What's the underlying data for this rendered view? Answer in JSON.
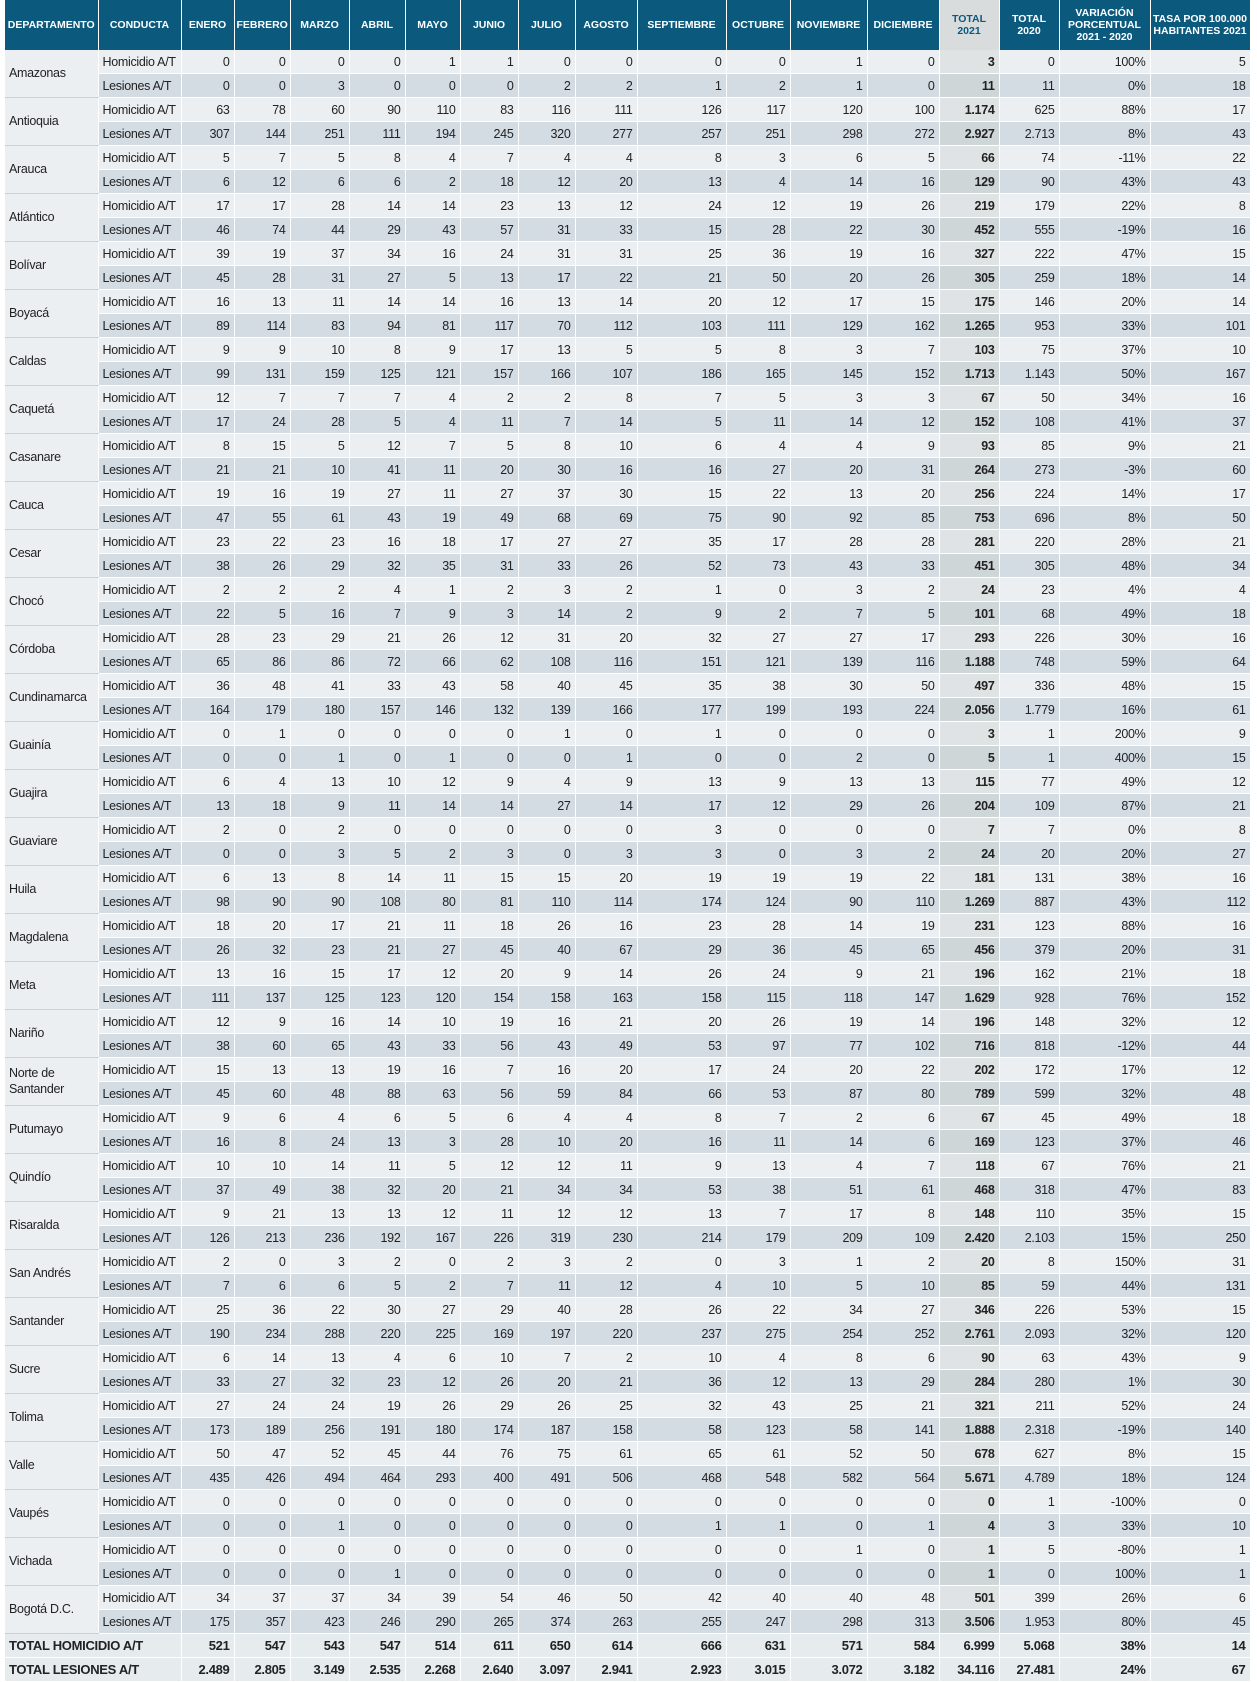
{
  "headers": [
    "DEPARTAMENTO",
    "CONDUCTA",
    "ENERO",
    "FEBRERO",
    "MARZO",
    "ABRIL",
    "MAYO",
    "JUNIO",
    "JULIO",
    "AGOSTO",
    "SEPTIEMBRE",
    "OCTUBRE",
    "NOVIEMBRE",
    "DICIEMBRE",
    "TOTAL 2021",
    "TOTAL 2020",
    "VARIACIÓN PORCENTUAL 2021 - 2020",
    "TASA POR 100.000 HABITANTES 2021"
  ],
  "conducts": {
    "h": "Homicidio A/T",
    "l": "Lesiones A/T"
  },
  "rows": [
    {
      "dept": "Amazonas",
      "h": [
        "0",
        "0",
        "0",
        "0",
        "1",
        "1",
        "0",
        "0",
        "0",
        "0",
        "1",
        "0",
        "3",
        "0",
        "100%",
        "5"
      ],
      "l": [
        "0",
        "0",
        "3",
        "0",
        "0",
        "0",
        "2",
        "2",
        "1",
        "2",
        "1",
        "0",
        "11",
        "11",
        "0%",
        "18"
      ]
    },
    {
      "dept": "Antioquia",
      "h": [
        "63",
        "78",
        "60",
        "90",
        "110",
        "83",
        "116",
        "111",
        "126",
        "117",
        "120",
        "100",
        "1.174",
        "625",
        "88%",
        "17"
      ],
      "l": [
        "307",
        "144",
        "251",
        "111",
        "194",
        "245",
        "320",
        "277",
        "257",
        "251",
        "298",
        "272",
        "2.927",
        "2.713",
        "8%",
        "43"
      ]
    },
    {
      "dept": "Arauca",
      "h": [
        "5",
        "7",
        "5",
        "8",
        "4",
        "7",
        "4",
        "4",
        "8",
        "3",
        "6",
        "5",
        "66",
        "74",
        "-11%",
        "22"
      ],
      "l": [
        "6",
        "12",
        "6",
        "6",
        "2",
        "18",
        "12",
        "20",
        "13",
        "4",
        "14",
        "16",
        "129",
        "90",
        "43%",
        "43"
      ]
    },
    {
      "dept": "Atlántico",
      "h": [
        "17",
        "17",
        "28",
        "14",
        "14",
        "23",
        "13",
        "12",
        "24",
        "12",
        "19",
        "26",
        "219",
        "179",
        "22%",
        "8"
      ],
      "l": [
        "46",
        "74",
        "44",
        "29",
        "43",
        "57",
        "31",
        "33",
        "15",
        "28",
        "22",
        "30",
        "452",
        "555",
        "-19%",
        "16"
      ]
    },
    {
      "dept": "Bolívar",
      "h": [
        "39",
        "19",
        "37",
        "34",
        "16",
        "24",
        "31",
        "31",
        "25",
        "36",
        "19",
        "16",
        "327",
        "222",
        "47%",
        "15"
      ],
      "l": [
        "45",
        "28",
        "31",
        "27",
        "5",
        "13",
        "17",
        "22",
        "21",
        "50",
        "20",
        "26",
        "305",
        "259",
        "18%",
        "14"
      ]
    },
    {
      "dept": "Boyacá",
      "h": [
        "16",
        "13",
        "11",
        "14",
        "14",
        "16",
        "13",
        "14",
        "20",
        "12",
        "17",
        "15",
        "175",
        "146",
        "20%",
        "14"
      ],
      "l": [
        "89",
        "114",
        "83",
        "94",
        "81",
        "117",
        "70",
        "112",
        "103",
        "111",
        "129",
        "162",
        "1.265",
        "953",
        "33%",
        "101"
      ]
    },
    {
      "dept": "Caldas",
      "h": [
        "9",
        "9",
        "10",
        "8",
        "9",
        "17",
        "13",
        "5",
        "5",
        "8",
        "3",
        "7",
        "103",
        "75",
        "37%",
        "10"
      ],
      "l": [
        "99",
        "131",
        "159",
        "125",
        "121",
        "157",
        "166",
        "107",
        "186",
        "165",
        "145",
        "152",
        "1.713",
        "1.143",
        "50%",
        "167"
      ]
    },
    {
      "dept": "Caquetá",
      "h": [
        "12",
        "7",
        "7",
        "7",
        "4",
        "2",
        "2",
        "8",
        "7",
        "5",
        "3",
        "3",
        "67",
        "50",
        "34%",
        "16"
      ],
      "l": [
        "17",
        "24",
        "28",
        "5",
        "4",
        "11",
        "7",
        "14",
        "5",
        "11",
        "14",
        "12",
        "152",
        "108",
        "41%",
        "37"
      ]
    },
    {
      "dept": "Casanare",
      "h": [
        "8",
        "15",
        "5",
        "12",
        "7",
        "5",
        "8",
        "10",
        "6",
        "4",
        "4",
        "9",
        "93",
        "85",
        "9%",
        "21"
      ],
      "l": [
        "21",
        "21",
        "10",
        "41",
        "11",
        "20",
        "30",
        "16",
        "16",
        "27",
        "20",
        "31",
        "264",
        "273",
        "-3%",
        "60"
      ]
    },
    {
      "dept": "Cauca",
      "h": [
        "19",
        "16",
        "19",
        "27",
        "11",
        "27",
        "37",
        "30",
        "15",
        "22",
        "13",
        "20",
        "256",
        "224",
        "14%",
        "17"
      ],
      "l": [
        "47",
        "55",
        "61",
        "43",
        "19",
        "49",
        "68",
        "69",
        "75",
        "90",
        "92",
        "85",
        "753",
        "696",
        "8%",
        "50"
      ]
    },
    {
      "dept": "Cesar",
      "h": [
        "23",
        "22",
        "23",
        "16",
        "18",
        "17",
        "27",
        "27",
        "35",
        "17",
        "28",
        "28",
        "281",
        "220",
        "28%",
        "21"
      ],
      "l": [
        "38",
        "26",
        "29",
        "32",
        "35",
        "31",
        "33",
        "26",
        "52",
        "73",
        "43",
        "33",
        "451",
        "305",
        "48%",
        "34"
      ]
    },
    {
      "dept": "Chocó",
      "h": [
        "2",
        "2",
        "2",
        "4",
        "1",
        "2",
        "3",
        "2",
        "1",
        "0",
        "3",
        "2",
        "24",
        "23",
        "4%",
        "4"
      ],
      "l": [
        "22",
        "5",
        "16",
        "7",
        "9",
        "3",
        "14",
        "2",
        "9",
        "2",
        "7",
        "5",
        "101",
        "68",
        "49%",
        "18"
      ]
    },
    {
      "dept": "Córdoba",
      "h": [
        "28",
        "23",
        "29",
        "21",
        "26",
        "12",
        "31",
        "20",
        "32",
        "27",
        "27",
        "17",
        "293",
        "226",
        "30%",
        "16"
      ],
      "l": [
        "65",
        "86",
        "86",
        "72",
        "66",
        "62",
        "108",
        "116",
        "151",
        "121",
        "139",
        "116",
        "1.188",
        "748",
        "59%",
        "64"
      ]
    },
    {
      "dept": "Cundinamarca",
      "h": [
        "36",
        "48",
        "41",
        "33",
        "43",
        "58",
        "40",
        "45",
        "35",
        "38",
        "30",
        "50",
        "497",
        "336",
        "48%",
        "15"
      ],
      "l": [
        "164",
        "179",
        "180",
        "157",
        "146",
        "132",
        "139",
        "166",
        "177",
        "199",
        "193",
        "224",
        "2.056",
        "1.779",
        "16%",
        "61"
      ]
    },
    {
      "dept": "Guainía",
      "h": [
        "0",
        "1",
        "0",
        "0",
        "0",
        "0",
        "1",
        "0",
        "1",
        "0",
        "0",
        "0",
        "3",
        "1",
        "200%",
        "9"
      ],
      "l": [
        "0",
        "0",
        "1",
        "0",
        "1",
        "0",
        "0",
        "1",
        "0",
        "0",
        "2",
        "0",
        "5",
        "1",
        "400%",
        "15"
      ]
    },
    {
      "dept": "Guajira",
      "h": [
        "6",
        "4",
        "13",
        "10",
        "12",
        "9",
        "4",
        "9",
        "13",
        "9",
        "13",
        "13",
        "115",
        "77",
        "49%",
        "12"
      ],
      "l": [
        "13",
        "18",
        "9",
        "11",
        "14",
        "14",
        "27",
        "14",
        "17",
        "12",
        "29",
        "26",
        "204",
        "109",
        "87%",
        "21"
      ]
    },
    {
      "dept": "Guaviare",
      "h": [
        "2",
        "0",
        "2",
        "0",
        "0",
        "0",
        "0",
        "0",
        "3",
        "0",
        "0",
        "0",
        "7",
        "7",
        "0%",
        "8"
      ],
      "l": [
        "0",
        "0",
        "3",
        "5",
        "2",
        "3",
        "0",
        "3",
        "3",
        "0",
        "3",
        "2",
        "24",
        "20",
        "20%",
        "27"
      ]
    },
    {
      "dept": "Huila",
      "h": [
        "6",
        "13",
        "8",
        "14",
        "11",
        "15",
        "15",
        "20",
        "19",
        "19",
        "19",
        "22",
        "181",
        "131",
        "38%",
        "16"
      ],
      "l": [
        "98",
        "90",
        "90",
        "108",
        "80",
        "81",
        "110",
        "114",
        "174",
        "124",
        "90",
        "110",
        "1.269",
        "887",
        "43%",
        "112"
      ]
    },
    {
      "dept": "Magdalena",
      "h": [
        "18",
        "20",
        "17",
        "21",
        "11",
        "18",
        "26",
        "16",
        "23",
        "28",
        "14",
        "19",
        "231",
        "123",
        "88%",
        "16"
      ],
      "l": [
        "26",
        "32",
        "23",
        "21",
        "27",
        "45",
        "40",
        "67",
        "29",
        "36",
        "45",
        "65",
        "456",
        "379",
        "20%",
        "31"
      ]
    },
    {
      "dept": "Meta",
      "h": [
        "13",
        "16",
        "15",
        "17",
        "12",
        "20",
        "9",
        "14",
        "26",
        "24",
        "9",
        "21",
        "196",
        "162",
        "21%",
        "18"
      ],
      "l": [
        "111",
        "137",
        "125",
        "123",
        "120",
        "154",
        "158",
        "163",
        "158",
        "115",
        "118",
        "147",
        "1.629",
        "928",
        "76%",
        "152"
      ]
    },
    {
      "dept": "Nariño",
      "h": [
        "12",
        "9",
        "16",
        "14",
        "10",
        "19",
        "16",
        "21",
        "20",
        "26",
        "19",
        "14",
        "196",
        "148",
        "32%",
        "12"
      ],
      "l": [
        "38",
        "60",
        "65",
        "43",
        "33",
        "56",
        "43",
        "49",
        "53",
        "97",
        "77",
        "102",
        "716",
        "818",
        "-12%",
        "44"
      ]
    },
    {
      "dept": "Norte de Santander",
      "h": [
        "15",
        "13",
        "13",
        "19",
        "16",
        "7",
        "16",
        "20",
        "17",
        "24",
        "20",
        "22",
        "202",
        "172",
        "17%",
        "12"
      ],
      "l": [
        "45",
        "60",
        "48",
        "88",
        "63",
        "56",
        "59",
        "84",
        "66",
        "53",
        "87",
        "80",
        "789",
        "599",
        "32%",
        "48"
      ]
    },
    {
      "dept": "Putumayo",
      "h": [
        "9",
        "6",
        "4",
        "6",
        "5",
        "6",
        "4",
        "4",
        "8",
        "7",
        "2",
        "6",
        "67",
        "45",
        "49%",
        "18"
      ],
      "l": [
        "16",
        "8",
        "24",
        "13",
        "3",
        "28",
        "10",
        "20",
        "16",
        "11",
        "14",
        "6",
        "169",
        "123",
        "37%",
        "46"
      ]
    },
    {
      "dept": "Quindío",
      "h": [
        "10",
        "10",
        "14",
        "11",
        "5",
        "12",
        "12",
        "11",
        "9",
        "13",
        "4",
        "7",
        "118",
        "67",
        "76%",
        "21"
      ],
      "l": [
        "37",
        "49",
        "38",
        "32",
        "20",
        "21",
        "34",
        "34",
        "53",
        "38",
        "51",
        "61",
        "468",
        "318",
        "47%",
        "83"
      ]
    },
    {
      "dept": "Risaralda",
      "h": [
        "9",
        "21",
        "13",
        "13",
        "12",
        "11",
        "12",
        "12",
        "13",
        "7",
        "17",
        "8",
        "148",
        "110",
        "35%",
        "15"
      ],
      "l": [
        "126",
        "213",
        "236",
        "192",
        "167",
        "226",
        "319",
        "230",
        "214",
        "179",
        "209",
        "109",
        "2.420",
        "2.103",
        "15%",
        "250"
      ]
    },
    {
      "dept": "San Andrés",
      "h": [
        "2",
        "0",
        "3",
        "2",
        "0",
        "2",
        "3",
        "2",
        "0",
        "3",
        "1",
        "2",
        "20",
        "8",
        "150%",
        "31"
      ],
      "l": [
        "7",
        "6",
        "6",
        "5",
        "2",
        "7",
        "11",
        "12",
        "4",
        "10",
        "5",
        "10",
        "85",
        "59",
        "44%",
        "131"
      ]
    },
    {
      "dept": "Santander",
      "h": [
        "25",
        "36",
        "22",
        "30",
        "27",
        "29",
        "40",
        "28",
        "26",
        "22",
        "34",
        "27",
        "346",
        "226",
        "53%",
        "15"
      ],
      "l": [
        "190",
        "234",
        "288",
        "220",
        "225",
        "169",
        "197",
        "220",
        "237",
        "275",
        "254",
        "252",
        "2.761",
        "2.093",
        "32%",
        "120"
      ]
    },
    {
      "dept": "Sucre",
      "h": [
        "6",
        "14",
        "13",
        "4",
        "6",
        "10",
        "7",
        "2",
        "10",
        "4",
        "8",
        "6",
        "90",
        "63",
        "43%",
        "9"
      ],
      "l": [
        "33",
        "27",
        "32",
        "23",
        "12",
        "26",
        "20",
        "21",
        "36",
        "12",
        "13",
        "29",
        "284",
        "280",
        "1%",
        "30"
      ]
    },
    {
      "dept": "Tolima",
      "h": [
        "27",
        "24",
        "24",
        "19",
        "26",
        "29",
        "26",
        "25",
        "32",
        "43",
        "25",
        "21",
        "321",
        "211",
        "52%",
        "24"
      ],
      "l": [
        "173",
        "189",
        "256",
        "191",
        "180",
        "174",
        "187",
        "158",
        "58",
        "123",
        "58",
        "141",
        "1.888",
        "2.318",
        "-19%",
        "140"
      ]
    },
    {
      "dept": "Valle",
      "h": [
        "50",
        "47",
        "52",
        "45",
        "44",
        "76",
        "75",
        "61",
        "65",
        "61",
        "52",
        "50",
        "678",
        "627",
        "8%",
        "15"
      ],
      "l": [
        "435",
        "426",
        "494",
        "464",
        "293",
        "400",
        "491",
        "506",
        "468",
        "548",
        "582",
        "564",
        "5.671",
        "4.789",
        "18%",
        "124"
      ]
    },
    {
      "dept": "Vaupés",
      "h": [
        "0",
        "0",
        "0",
        "0",
        "0",
        "0",
        "0",
        "0",
        "0",
        "0",
        "0",
        "0",
        "0",
        "1",
        "-100%",
        "0"
      ],
      "l": [
        "0",
        "0",
        "1",
        "0",
        "0",
        "0",
        "0",
        "0",
        "1",
        "1",
        "0",
        "1",
        "4",
        "3",
        "33%",
        "10"
      ]
    },
    {
      "dept": "Vichada",
      "h": [
        "0",
        "0",
        "0",
        "0",
        "0",
        "0",
        "0",
        "0",
        "0",
        "0",
        "1",
        "0",
        "1",
        "5",
        "-80%",
        "1"
      ],
      "l": [
        "0",
        "0",
        "0",
        "1",
        "0",
        "0",
        "0",
        "0",
        "0",
        "0",
        "0",
        "0",
        "1",
        "0",
        "100%",
        "1"
      ]
    },
    {
      "dept": "Bogotá D.C.",
      "h": [
        "34",
        "37",
        "37",
        "34",
        "39",
        "54",
        "46",
        "50",
        "42",
        "40",
        "40",
        "48",
        "501",
        "399",
        "26%",
        "6"
      ],
      "l": [
        "175",
        "357",
        "423",
        "246",
        "290",
        "265",
        "374",
        "263",
        "255",
        "247",
        "298",
        "313",
        "3.506",
        "1.953",
        "80%",
        "45"
      ]
    }
  ],
  "totals": [
    {
      "label": "TOTAL HOMICIDIO A/T",
      "values": [
        "521",
        "547",
        "543",
        "547",
        "514",
        "611",
        "650",
        "614",
        "666",
        "631",
        "571",
        "584",
        "6.999",
        "5.068",
        "38%",
        "14"
      ]
    },
    {
      "label": "TOTAL LESIONES A/T",
      "values": [
        "2.489",
        "2.805",
        "3.149",
        "2.535",
        "2.268",
        "2.640",
        "3.097",
        "2.941",
        "2.923",
        "3.015",
        "3.072",
        "3.182",
        "34.116",
        "27.481",
        "24%",
        "67"
      ]
    }
  ],
  "colors": {
    "header_bg": "#0b5a7e",
    "header_total2021_bg": "#d9dcdc",
    "row_homicidio": "#eceff2",
    "row_lesiones": "#d4dce3"
  }
}
